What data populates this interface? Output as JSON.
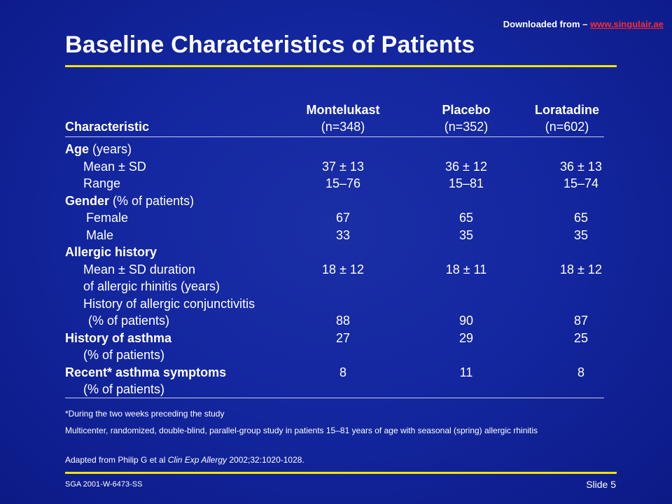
{
  "header": {
    "download_prefix": "Downloaded from – ",
    "download_link": "www.singulair.ae",
    "title": "Baseline Characteristics of Patients"
  },
  "table": {
    "columns": [
      {
        "name": "Montelukast",
        "n": "(n=348)"
      },
      {
        "name": "Placebo",
        "n": "(n=352)"
      },
      {
        "name": "Loratadine",
        "n": "(n=602)"
      }
    ],
    "characteristic_label": "Characteristic",
    "rows": [
      {
        "bold": "Age",
        "label": " (years)",
        "indent": 0,
        "values": [
          "",
          "",
          ""
        ]
      },
      {
        "bold": "",
        "label": "Mean ± SD",
        "indent": 1,
        "values": [
          "37 ± 13",
          "36 ± 12",
          "36 ± 13"
        ]
      },
      {
        "bold": "",
        "label": "Range",
        "indent": 1,
        "values": [
          "15–76",
          "15–81",
          "15–74"
        ]
      },
      {
        "bold": "Gender",
        "label": " (% of patients)",
        "indent": 0,
        "values": [
          "",
          "",
          ""
        ]
      },
      {
        "bold": "",
        "label": "Female",
        "indent": 2,
        "values": [
          "67",
          "65",
          "65"
        ]
      },
      {
        "bold": "",
        "label": "Male",
        "indent": 2,
        "values": [
          "33",
          "35",
          "35"
        ]
      },
      {
        "bold": "Allergic history",
        "label": "",
        "indent": 0,
        "values": [
          "",
          "",
          ""
        ]
      },
      {
        "bold": "",
        "label": "Mean ± SD duration",
        "indent": 1,
        "values": [
          "18 ± 12",
          "18 ± 11",
          "18 ± 12"
        ]
      },
      {
        "bold": "",
        "label": "of allergic rhinitis (years)",
        "indent": 1,
        "values": [
          "",
          "",
          ""
        ]
      },
      {
        "bold": "",
        "label": "History of allergic conjunctivitis",
        "indent": 1,
        "values": [
          "",
          "",
          ""
        ]
      },
      {
        "bold": "",
        "label": "(% of patients)",
        "indent": 3,
        "values": [
          "88",
          "90",
          "87"
        ]
      },
      {
        "bold": "History of asthma",
        "label": "",
        "indent": 0,
        "values": [
          "27",
          "29",
          "25"
        ]
      },
      {
        "bold": "",
        "label": "(% of patients)",
        "indent": 1,
        "values": [
          "",
          "",
          ""
        ]
      },
      {
        "bold": "Recent* asthma symptoms",
        "label": "",
        "indent": 0,
        "values": [
          "8",
          "11",
          "8"
        ]
      },
      {
        "bold": "",
        "label": "(% of patients)",
        "indent": 1,
        "values": [
          "",
          "",
          ""
        ]
      }
    ]
  },
  "notes": {
    "footnote": "*During the two weeks preceding the study",
    "study": "Multicenter, randomized, double-blind, parallel-group study in patients 15–81 years of age with seasonal (spring) allergic rhinitis",
    "adapted_prefix": "Adapted from Philip G et al ",
    "adapted_journal": "Clin Exp Allergy",
    "adapted_suffix": " 2002;32:1020-1028."
  },
  "footer": {
    "code": "SGA  2001-W-6473-SS",
    "slide": "Slide 5"
  },
  "colors": {
    "background": "#1427a0",
    "accent_rule": "#f2e400",
    "link": "#ff2a2a"
  }
}
